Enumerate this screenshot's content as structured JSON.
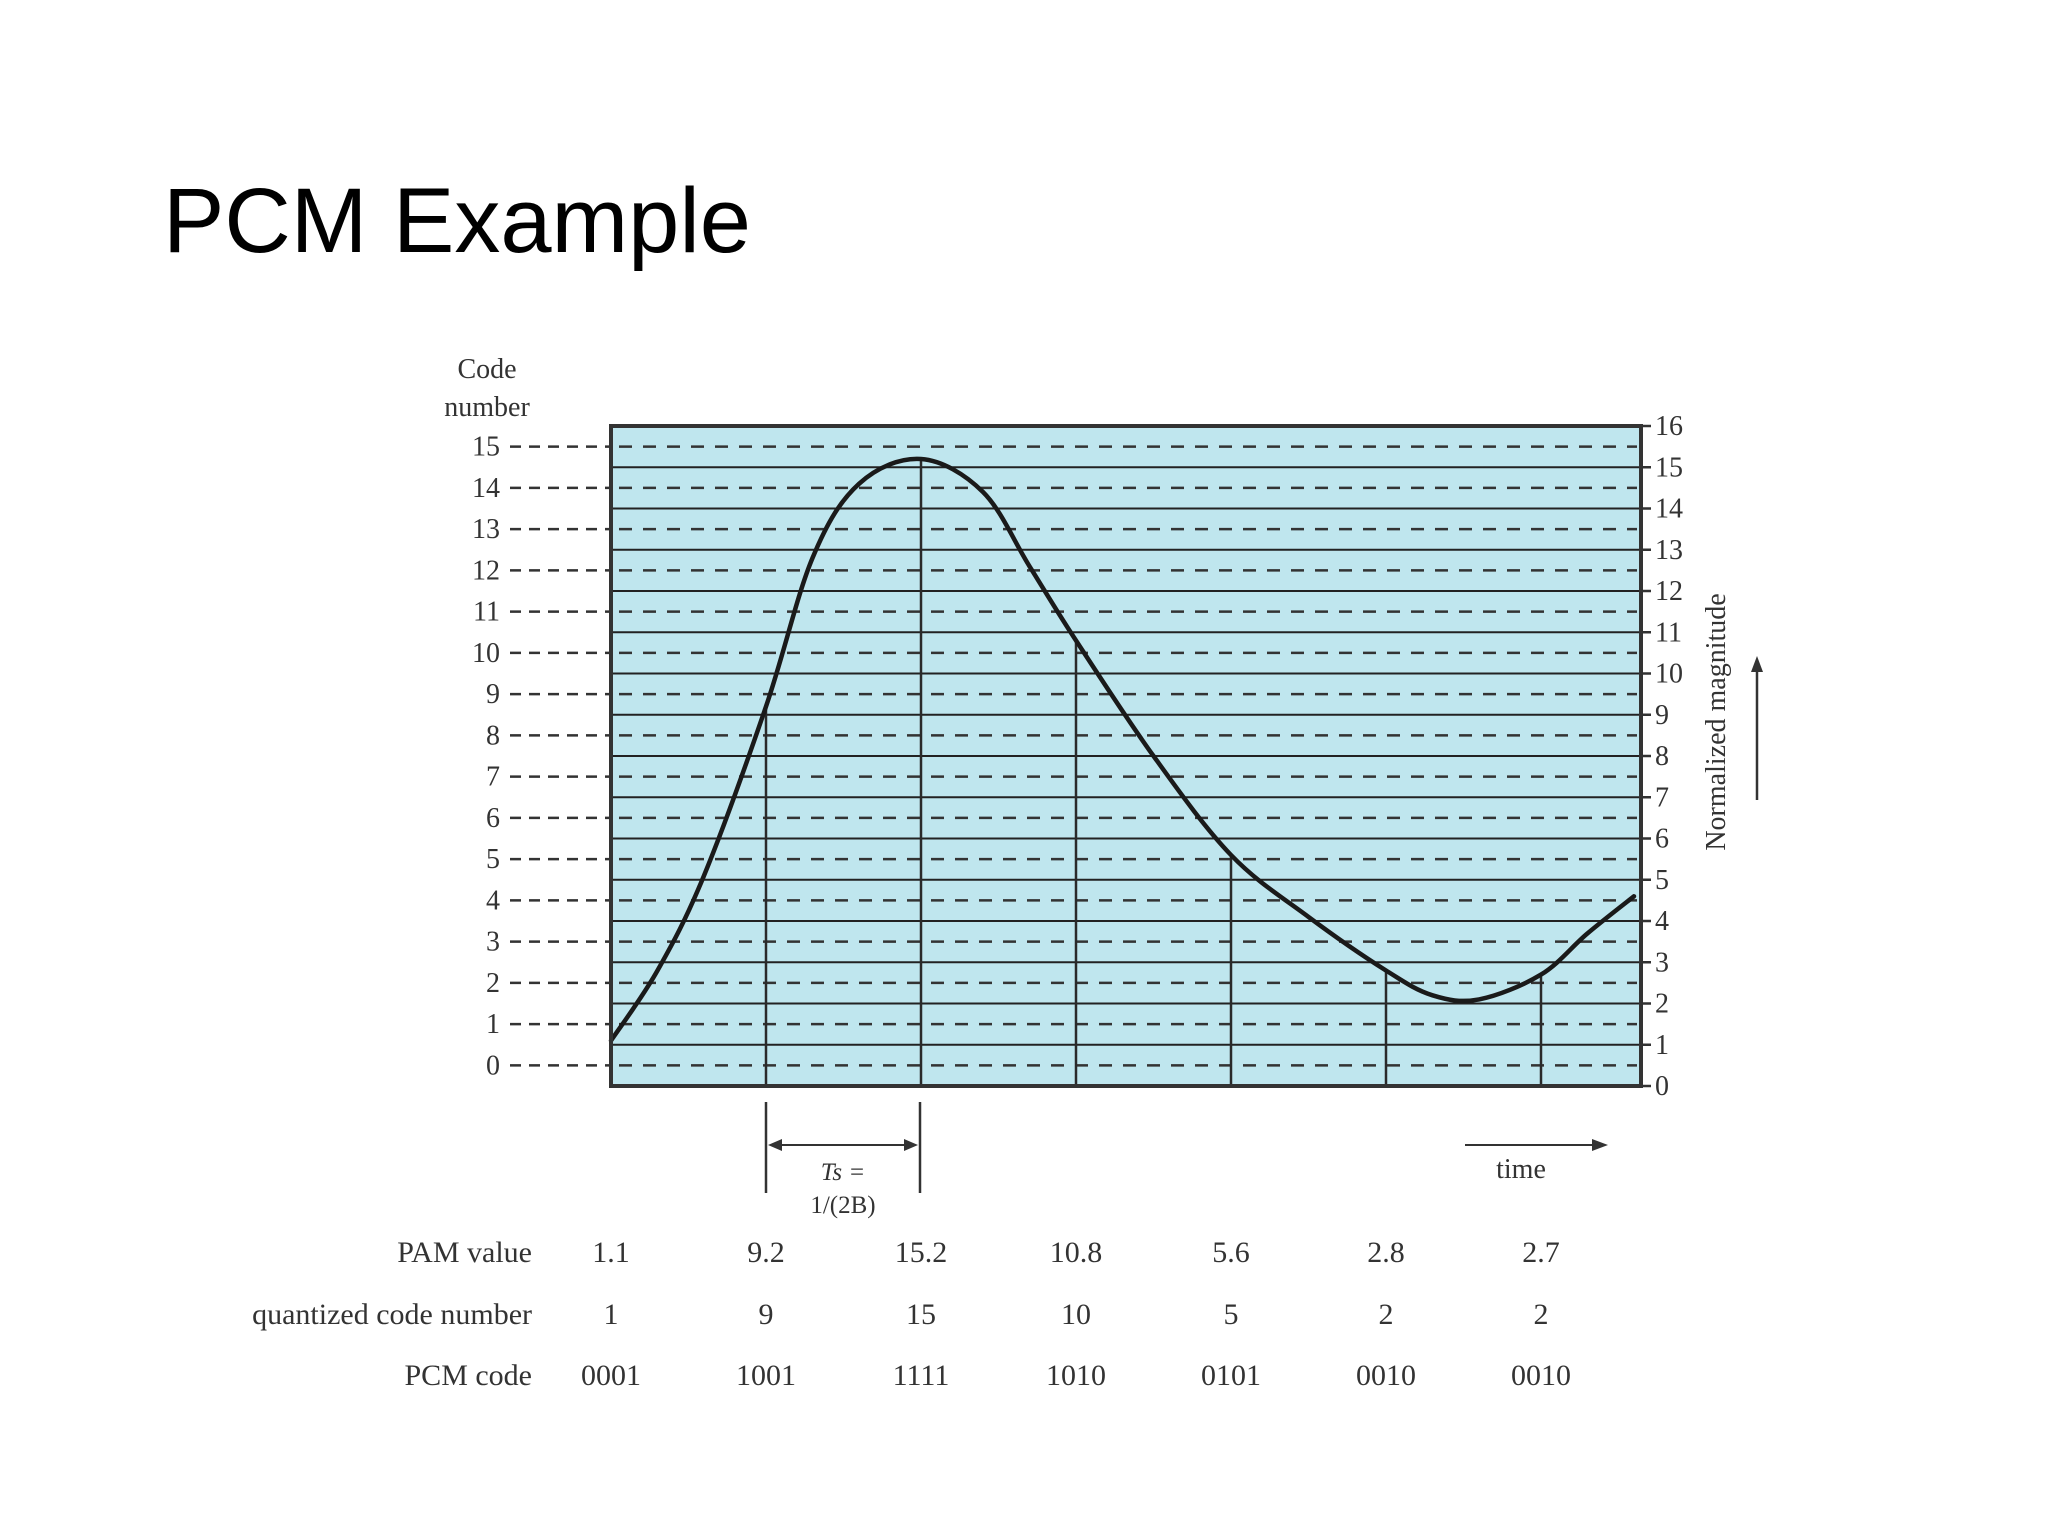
{
  "slide": {
    "title": "PCM Example"
  },
  "figure": {
    "left_axis_title_line1": "Code",
    "left_axis_title_line2": "number",
    "right_axis_title": "Normalized magnitude",
    "left_ticks": [
      "15",
      "14",
      "13",
      "12",
      "11",
      "10",
      "9",
      "8",
      "7",
      "6",
      "5",
      "4",
      "3",
      "2",
      "1",
      "0"
    ],
    "right_ticks": [
      "16",
      "15",
      "14",
      "13",
      "12",
      "11",
      "10",
      "9",
      "8",
      "7",
      "6",
      "5",
      "4",
      "3",
      "2",
      "1",
      "0"
    ],
    "ts_line1": "Ts =",
    "ts_line2": "1/(2B)",
    "time_label": "time",
    "colors": {
      "plot_bg": "#bfe6ee",
      "curve": "#1a1a1a",
      "grid": "#222222"
    }
  },
  "table": {
    "rows": [
      {
        "label": "PAM value",
        "values": [
          "1.1",
          "9.2",
          "15.2",
          "10.8",
          "5.6",
          "2.8",
          "2.7"
        ]
      },
      {
        "label": "quantized code number",
        "values": [
          "1",
          "9",
          "15",
          "10",
          "5",
          "2",
          "2"
        ]
      },
      {
        "label": "PCM code",
        "values": [
          "0001",
          "1001",
          "1111",
          "1010",
          "0101",
          "0010",
          "0010"
        ]
      }
    ]
  },
  "chart_data": {
    "type": "line",
    "xlabel": "time",
    "ylabel": "Normalized magnitude",
    "ylim": [
      0,
      16
    ],
    "samples_x": [
      0,
      1,
      2,
      3,
      4,
      5,
      6
    ],
    "samples_pam": [
      1.1,
      9.2,
      15.2,
      10.8,
      5.6,
      2.8,
      2.7
    ],
    "curve": {
      "x": [
        0,
        0.3,
        0.6,
        1,
        1.3,
        1.6,
        2,
        2.4,
        2.7,
        3,
        3.5,
        4,
        4.5,
        5,
        5.3,
        5.6,
        6,
        6.3,
        6.6
      ],
      "y": [
        1.1,
        2.8,
        5.1,
        9.2,
        12.8,
        14.6,
        15.2,
        14.4,
        12.6,
        10.8,
        8.0,
        5.6,
        4.1,
        2.8,
        2.2,
        2.1,
        2.7,
        3.7,
        4.6
      ]
    }
  }
}
